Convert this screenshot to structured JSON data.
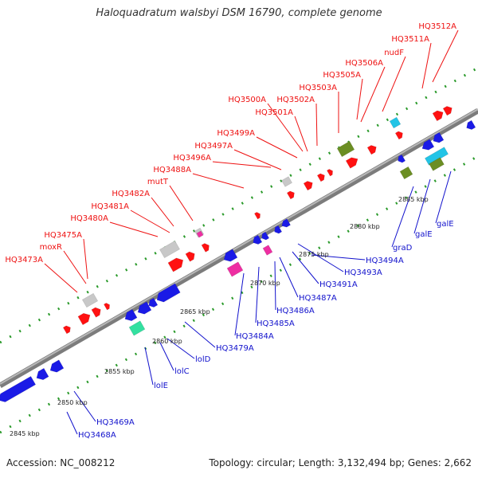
{
  "header": {
    "title": "Haloquadratum walsbyi DSM 16790, complete genome"
  },
  "footer": {
    "accession": "Accession: NC_008212",
    "topology": "Topology: circular; Length: 3,132,494 bp; Genes: 2,662"
  },
  "colors": {
    "forward_label": "#ee1111",
    "reverse_label": "#1111cc",
    "forward_gene": "#ff1111",
    "reverse_gene": "#1a1ae6",
    "pink_gene": "#ee2ea2",
    "cyan_gene": "#22c4e6",
    "olive_gene": "#6b8e23",
    "grey_gene": "#c8c8c8",
    "teal_gene": "#33e0a0",
    "backbone": "#8c8c8c",
    "tick_dots": "#2a9a2a"
  },
  "scale": {
    "ticks": [
      "2845 kbp",
      "2850 kbp",
      "2855 kbp",
      "2860 kbp",
      "2865 kbp",
      "2870 kbp",
      "2875 kbp",
      "2880 kbp",
      "2885 kbp"
    ]
  },
  "forward_labels": [
    "HQ3473A",
    "HQ3475A",
    "moxR",
    "HQ3480A",
    "HQ3481A",
    "HQ3482A",
    "mutT",
    "HQ3488A",
    "HQ3496A",
    "HQ3497A",
    "HQ3499A",
    "HQ3500A",
    "HQ3501A",
    "HQ3502A",
    "HQ3503A",
    "HQ3505A",
    "HQ3506A",
    "nudF",
    "HQ3511A",
    "HQ3512A"
  ],
  "reverse_labels": [
    "HQ3468A",
    "HQ3469A",
    "lolE",
    "lolC",
    "lolD",
    "HQ3479A",
    "HQ3484A",
    "HQ3485A",
    "HQ3486A",
    "HQ3487A",
    "HQ3491A",
    "HQ3493A",
    "HQ3494A",
    "graD",
    "galE",
    "galE"
  ]
}
